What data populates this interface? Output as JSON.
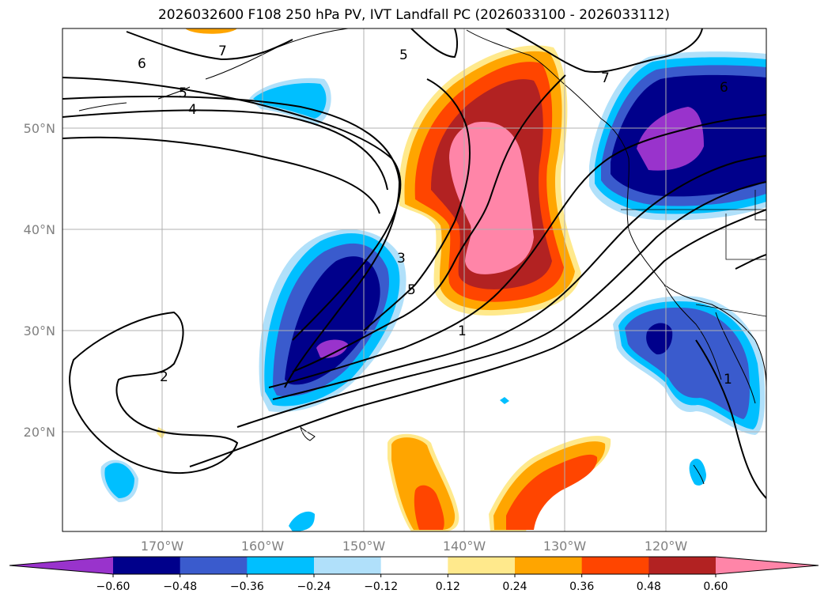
{
  "title": "2026032600 F108 250 hPa PV, IVT Landfall PC (2026033100 - 2026033112)",
  "lat_labels": [
    "50°N",
    "40°N",
    "30°N",
    "20°N"
  ],
  "lon_labels": [
    "170°W",
    "160°W",
    "150°W",
    "140°W",
    "130°W",
    "120°W"
  ],
  "colorbar": {
    "colors": [
      "#9933cc",
      "#00008b",
      "#3a5bcd",
      "#00bfff",
      "#b0e0fa",
      "#ffffff",
      "#ffe98c",
      "#ffa500",
      "#ff4500",
      "#b22222",
      "#ff85a8"
    ],
    "tick_labels": [
      "−0.60",
      "−0.48",
      "−0.36",
      "−0.24",
      "−0.12",
      "0.12",
      "0.24",
      "0.36",
      "0.48",
      "0.60"
    ]
  },
  "pv_contour_labels": [
    "7",
    "6",
    "5",
    "5",
    "4",
    "3",
    "2",
    "5",
    "1",
    "7",
    "6",
    "1"
  ]
}
